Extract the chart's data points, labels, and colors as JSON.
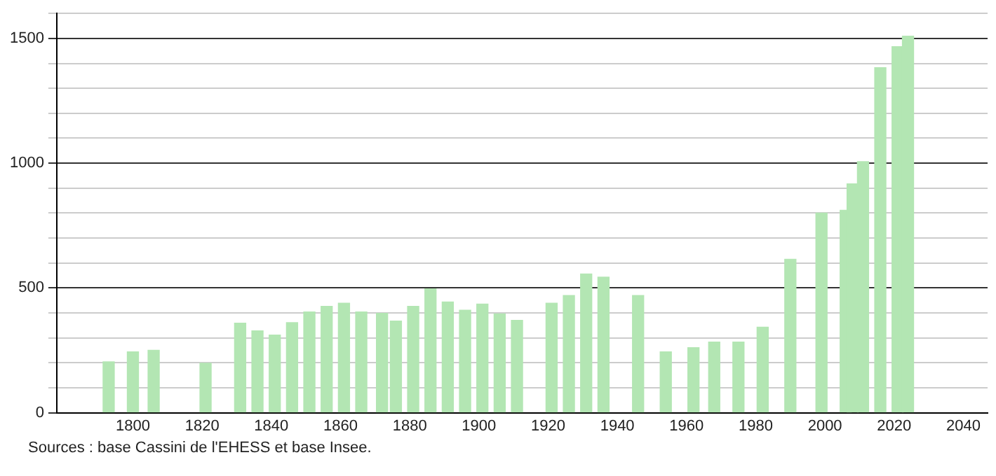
{
  "chart_data": {
    "type": "bar",
    "x": [
      1793,
      1800,
      1806,
      1821,
      1831,
      1836,
      1841,
      1846,
      1851,
      1856,
      1861,
      1866,
      1872,
      1876,
      1881,
      1886,
      1891,
      1896,
      1901,
      1906,
      1911,
      1921,
      1926,
      1931,
      1936,
      1946,
      1954,
      1962,
      1968,
      1975,
      1982,
      1990,
      1999,
      2006,
      2008,
      2011,
      2016,
      2021,
      2024
    ],
    "values": [
      204,
      244,
      250,
      198,
      359,
      328,
      311,
      361,
      404,
      426,
      439,
      404,
      398,
      367,
      426,
      496,
      444,
      411,
      435,
      396,
      370,
      439,
      470,
      556,
      543,
      470,
      244,
      261,
      283,
      283,
      343,
      615,
      800,
      811,
      917,
      1006,
      1383,
      1467,
      1509
    ],
    "color": "#b3e6b3",
    "xlim": [
      1778,
      2047
    ],
    "xticks": [
      1800,
      1820,
      1840,
      1860,
      1880,
      1900,
      1920,
      1940,
      1960,
      1980,
      2000,
      2020,
      2040
    ],
    "ylim": [
      0,
      1600
    ],
    "yticks": [
      0,
      {
        "value": 100,
        "label": null
      },
      {
        "value": 200,
        "label": null
      },
      {
        "value": 300,
        "label": null
      },
      {
        "value": 400,
        "label": null
      },
      500,
      {
        "value": 600,
        "label": null
      },
      {
        "value": 700,
        "label": null
      },
      {
        "value": 800,
        "label": null
      },
      {
        "value": 900,
        "label": null
      },
      1000,
      {
        "value": 1100,
        "label": null
      },
      {
        "value": 1200,
        "label": null
      },
      {
        "value": 1300,
        "label": null
      },
      {
        "value": 1400,
        "label": null
      },
      1500,
      {
        "value": 1600,
        "label": null
      }
    ],
    "grid": "y",
    "annotations": [
      "Sources : base Cassini de l'EHESS et base Insee."
    ]
  }
}
